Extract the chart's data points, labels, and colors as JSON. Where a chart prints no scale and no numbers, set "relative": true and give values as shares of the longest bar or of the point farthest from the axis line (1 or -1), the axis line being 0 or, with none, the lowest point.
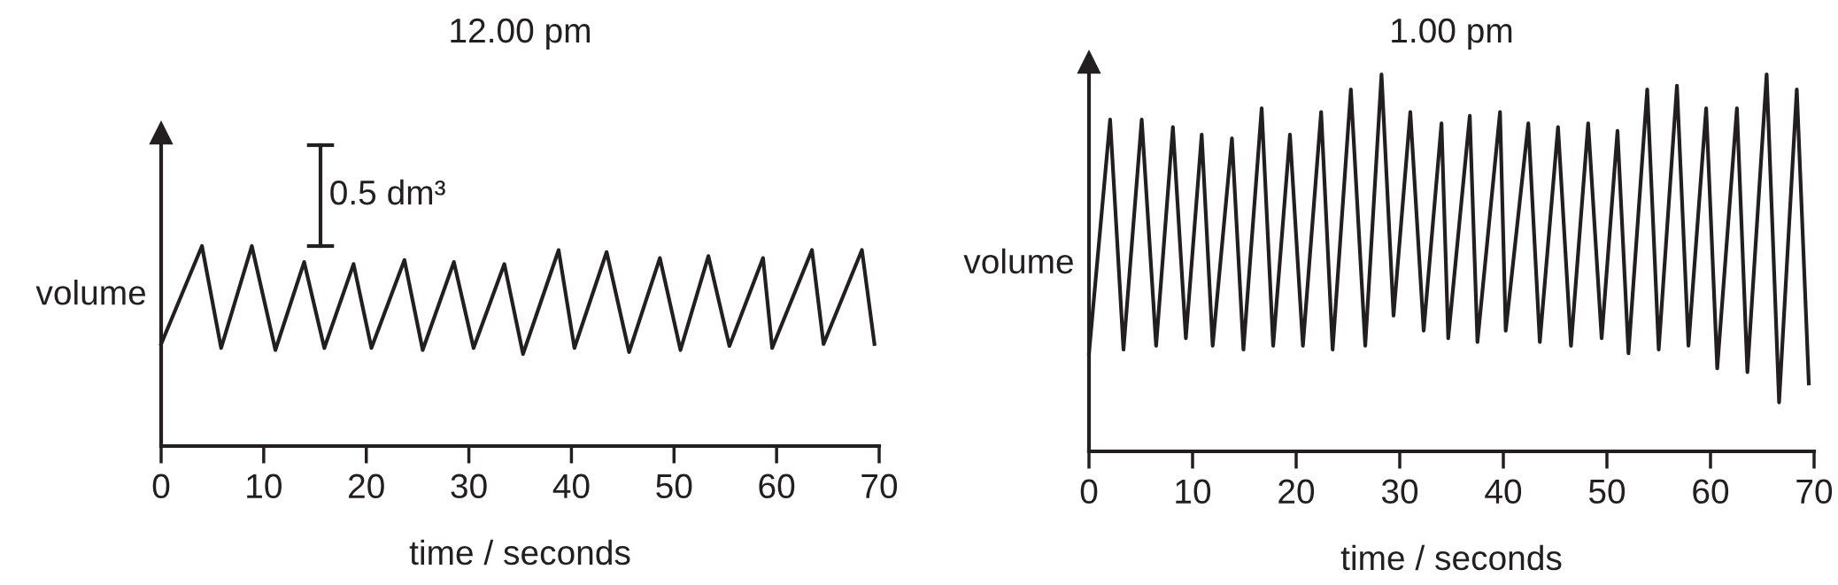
{
  "chart_data": [
    {
      "type": "line",
      "title": "12.00 pm",
      "xlabel": "time / seconds",
      "ylabel": "volume",
      "relative": true,
      "tick_labels": "x",
      "grid": false,
      "marker": "none",
      "line_style": "solid",
      "color": "#231f20",
      "xlim": [
        0,
        70
      ],
      "xticks": [
        0,
        10,
        20,
        30,
        40,
        50,
        60,
        70
      ],
      "annotations": [
        "0.5 dm³"
      ],
      "x": [
        0,
        3.98,
        5.85,
        8.84,
        11.14,
        13.94,
        15.91,
        18.76,
        20.5,
        23.72,
        25.5,
        28.54,
        30.46,
        33.46,
        35.28,
        38.75,
        40.29,
        43.43,
        45.62,
        48.62,
        50.63,
        53.35,
        55.4,
        58.68,
        59.57,
        63.45,
        64.58,
        68.32,
        69.54
      ],
      "values": [
        0.51,
        1,
        0.49,
        1,
        0.48,
        0.92,
        0.49,
        0.91,
        0.49,
        0.93,
        0.48,
        0.92,
        0.49,
        0.91,
        0.46,
        0.98,
        0.49,
        0.97,
        0.47,
        0.94,
        0.48,
        0.95,
        0.5,
        0.94,
        0.49,
        0.98,
        0.51,
        0.98,
        0.51
      ]
    },
    {
      "type": "line",
      "title": "1.00 pm",
      "xlabel": "time / seconds",
      "ylabel": "volume",
      "relative": true,
      "tick_labels": "x",
      "grid": false,
      "marker": "none",
      "line_style": "solid",
      "color": "#231f20",
      "xlim": [
        0,
        70
      ],
      "xticks": [
        0,
        10,
        20,
        30,
        40,
        50,
        60,
        70
      ],
      "x": [
        0,
        2.04,
        3.33,
        5.09,
        6.48,
        8.1,
        9.35,
        10.88,
        11.94,
        13.8,
        14.91,
        16.67,
        17.78,
        19.4,
        20.65,
        22.41,
        23.52,
        25.28,
        26.67,
        28.24,
        29.4,
        31.02,
        32.31,
        34.03,
        34.68,
        36.76,
        37.5,
        39.68,
        40.23,
        42.41,
        43.52,
        45.28,
        46.53,
        48.19,
        49.49,
        51.02,
        52.08,
        53.89,
        55.0,
        56.76,
        57.87,
        59.58,
        60.65,
        62.55,
        63.56,
        65.42,
        66.62,
        68.33,
        69.49
      ],
      "values": [
        0.26,
        0.88,
        0.27,
        0.88,
        0.28,
        0.86,
        0.3,
        0.84,
        0.28,
        0.83,
        0.27,
        0.91,
        0.28,
        0.84,
        0.28,
        0.9,
        0.27,
        0.96,
        0.28,
        1,
        0.36,
        0.9,
        0.32,
        0.87,
        0.3,
        0.89,
        0.29,
        0.9,
        0.32,
        0.87,
        0.29,
        0.86,
        0.28,
        0.87,
        0.3,
        0.85,
        0.26,
        0.96,
        0.27,
        0.97,
        0.28,
        0.91,
        0.22,
        0.91,
        0.21,
        1,
        0.13,
        0.96,
        0.18
      ]
    }
  ]
}
